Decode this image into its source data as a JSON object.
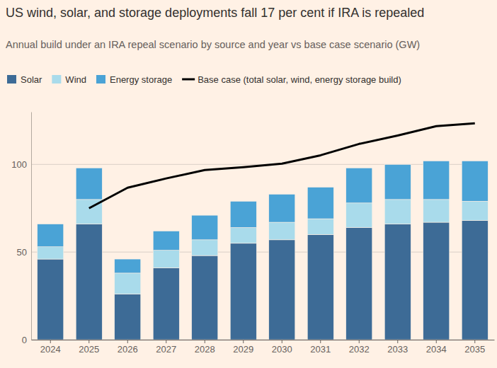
{
  "chart_data": {
    "type": "bar",
    "title": "US wind, solar, and storage deployments fall 17 per cent if IRA is repealed",
    "subtitle": "Annual build under an IRA repeal scenario by source and year vs base case scenario (GW)",
    "categories": [
      "2024",
      "2025",
      "2026",
      "2027",
      "2028",
      "2029",
      "2030",
      "2031",
      "2032",
      "2033",
      "2034",
      "2035"
    ],
    "stacked": true,
    "grid": true,
    "legend": "top",
    "ylim": [
      0,
      130
    ],
    "yticks": [
      0,
      50,
      100
    ],
    "series": [
      {
        "name": "Solar",
        "color": "#3d6b96",
        "values": [
          46,
          66,
          26,
          41,
          48,
          55,
          57,
          60,
          64,
          66,
          67,
          68
        ]
      },
      {
        "name": "Wind",
        "color": "#a9dbeb",
        "values": [
          7,
          14,
          12,
          10,
          9,
          9,
          10,
          9,
          14,
          14,
          13,
          11
        ]
      },
      {
        "name": "Energy storage",
        "color": "#4aa3d6",
        "values": [
          13,
          18,
          8,
          11,
          14,
          15,
          16,
          18,
          20,
          20,
          22,
          23
        ]
      },
      {
        "name": "Base case (total solar, wind, energy storage build)",
        "type": "line",
        "color": "#000000",
        "values": [
          null,
          75,
          86.7,
          92,
          96.8,
          98.4,
          100.4,
          105.2,
          111.7,
          116.5,
          121.8,
          123.4
        ]
      }
    ]
  }
}
